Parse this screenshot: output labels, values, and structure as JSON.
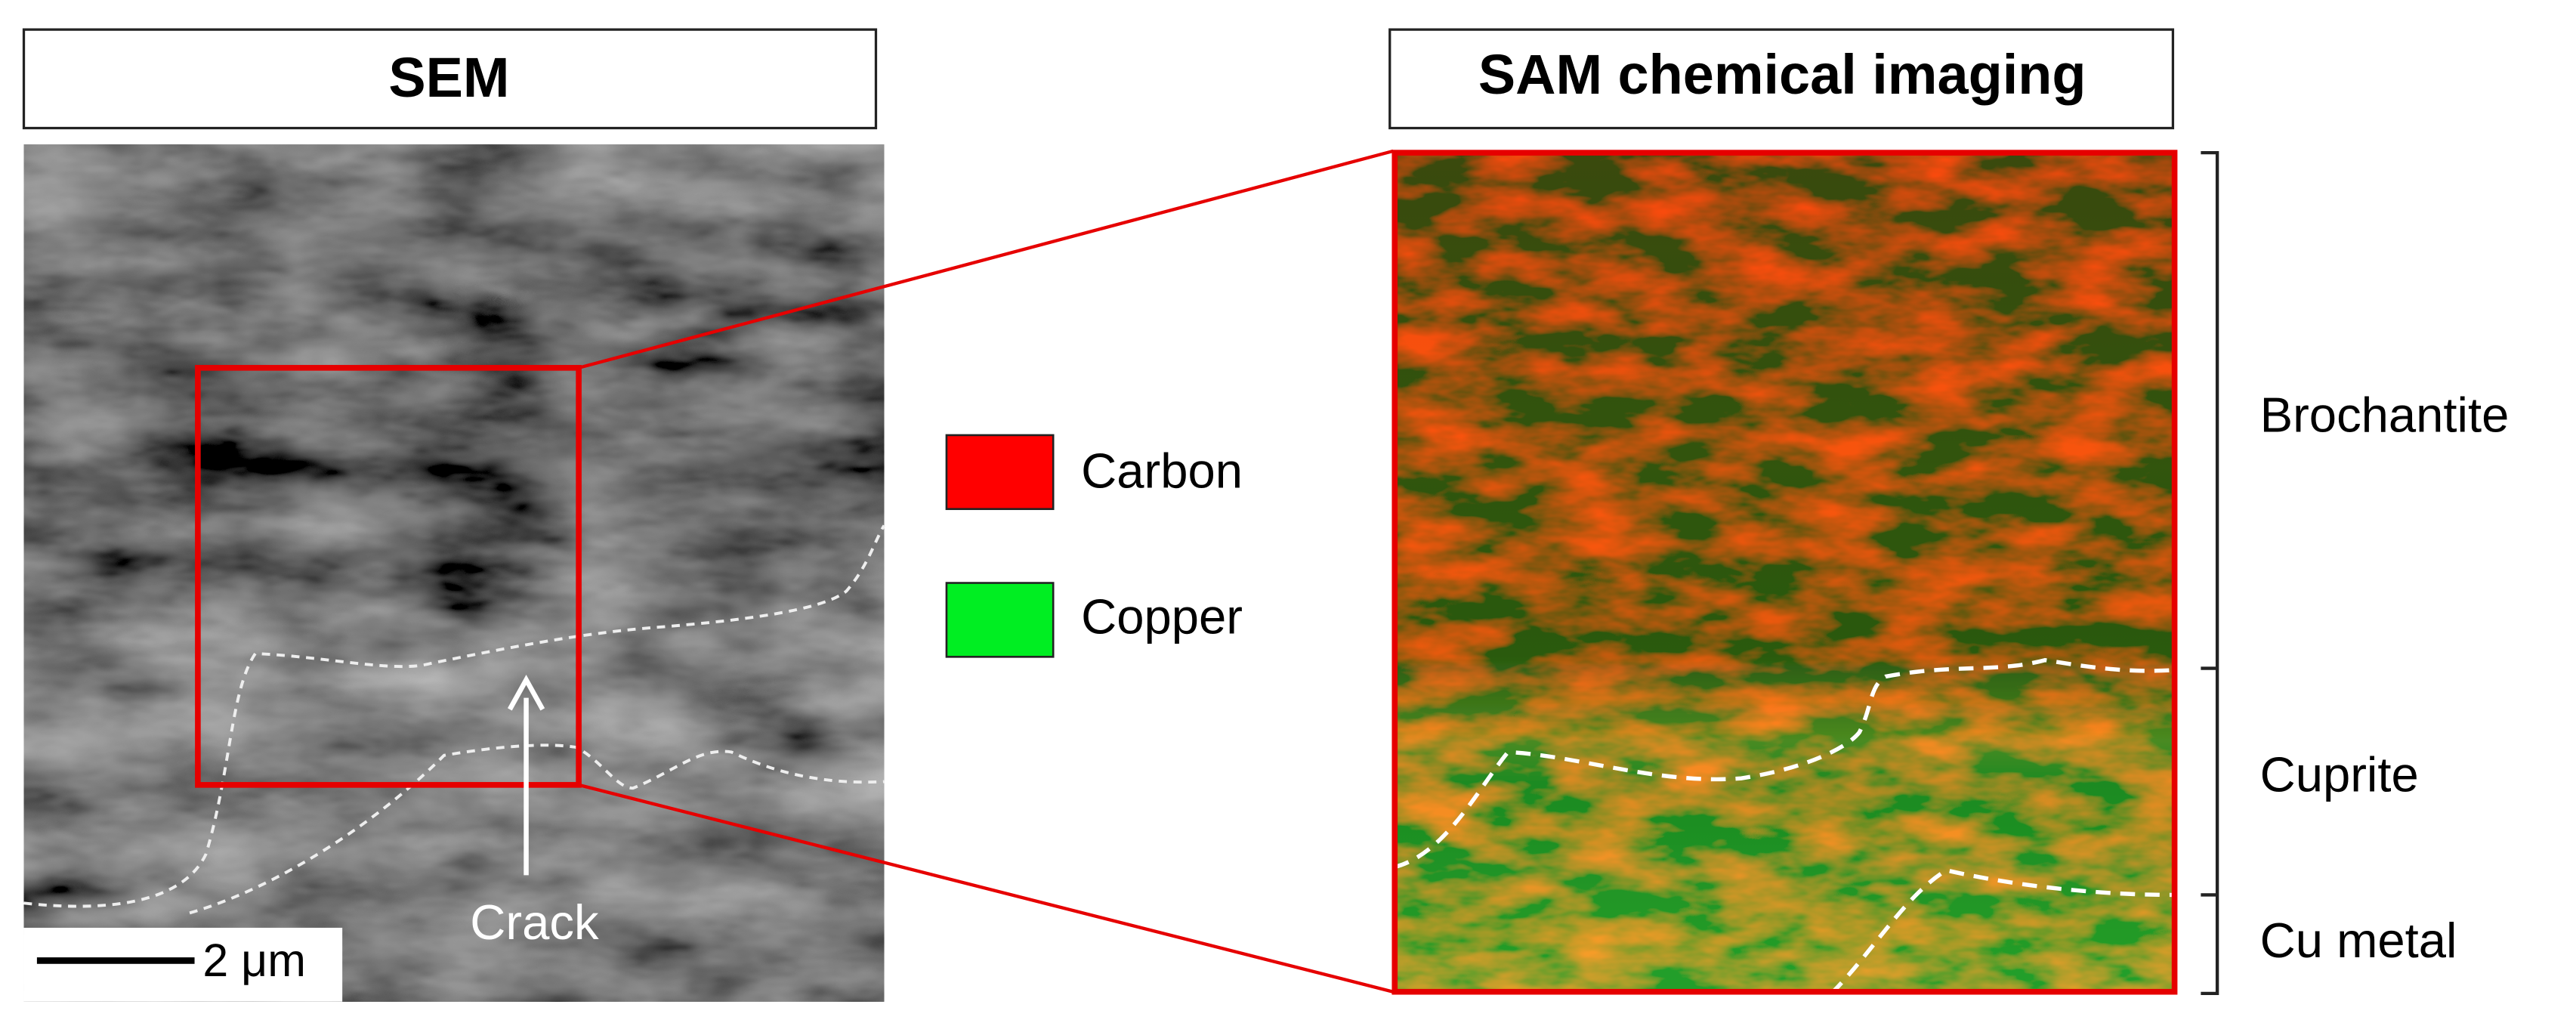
{
  "sem": {
    "title": "SEM",
    "scale_bar": "2 μm",
    "annotation": "Crack"
  },
  "legend": {
    "items": [
      "Carbon",
      "Copper"
    ]
  },
  "sam": {
    "title": "SAM chemical imaging",
    "layers": [
      "Brochantite",
      "Cuprite",
      "Cu metal"
    ]
  }
}
